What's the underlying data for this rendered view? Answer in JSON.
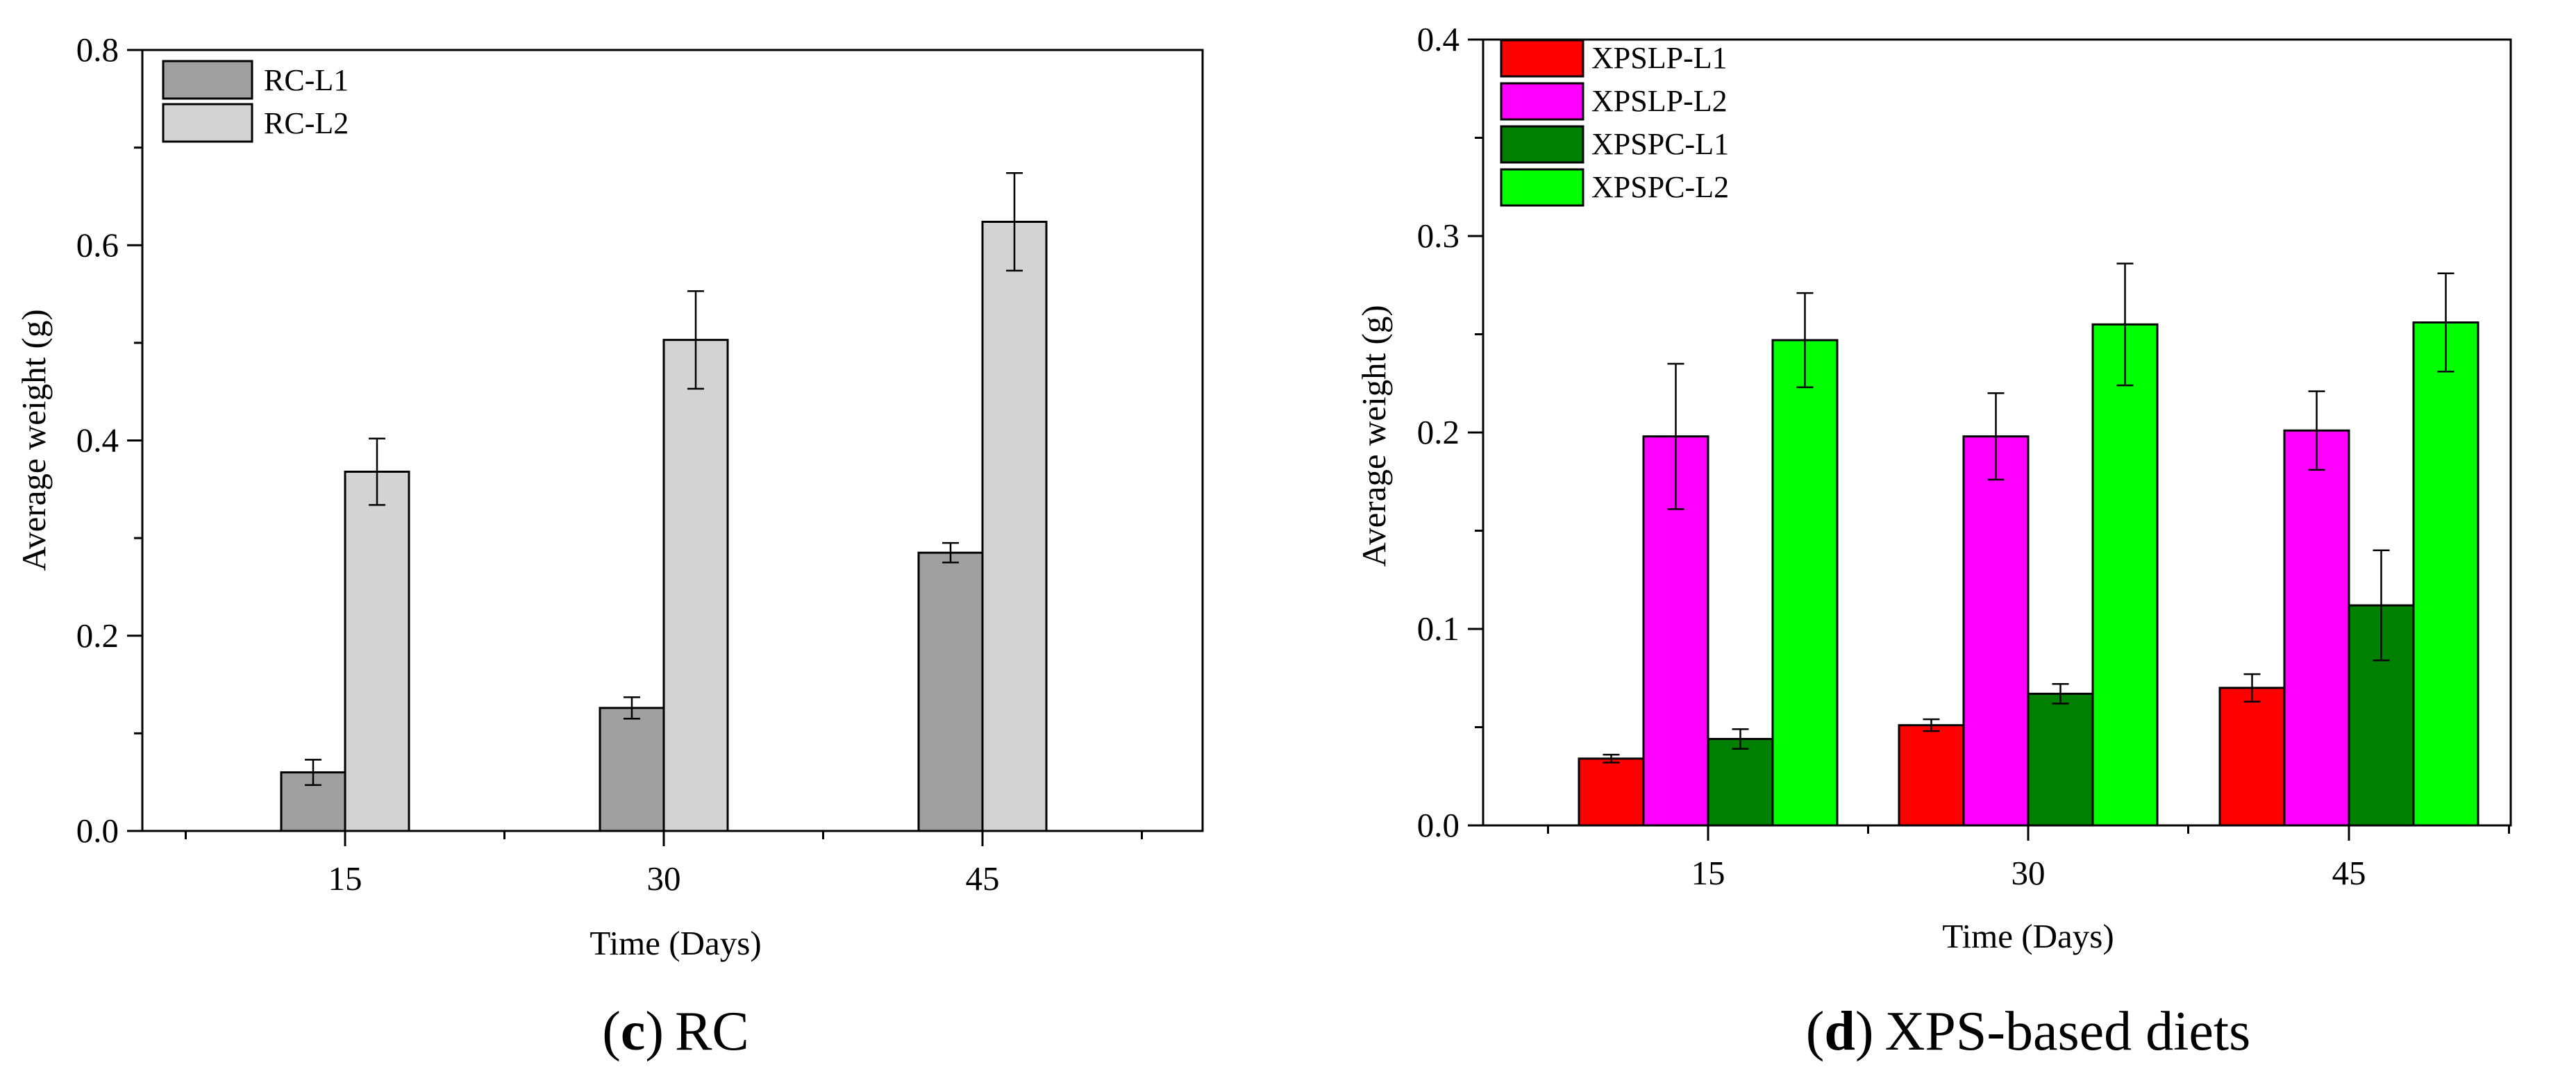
{
  "chart_data": [
    {
      "type": "bar",
      "panel": "c",
      "caption": {
        "letter": "c",
        "text": "RC",
        "open": "(",
        "close": ")"
      },
      "title": "",
      "xlabel": "Time (Days)",
      "ylabel": "Average weight (g)",
      "ylim": [
        0,
        0.8
      ],
      "yticks": [
        "0.0",
        "0.2",
        "0.4",
        "0.6",
        "0.8"
      ],
      "ytick_values": [
        0,
        0.2,
        0.4,
        0.6,
        0.8
      ],
      "categories": [
        "15",
        "30",
        "45"
      ],
      "series": [
        {
          "name": "RC-L1",
          "color": "#a0a0a0",
          "values": [
            0.06,
            0.126,
            0.285
          ],
          "errors": [
            0.013,
            0.011,
            0.01
          ]
        },
        {
          "name": "RC-L2",
          "color": "#d3d3d3",
          "values": [
            0.368,
            0.503,
            0.624
          ],
          "errors": [
            0.034,
            0.05,
            0.05
          ]
        }
      ],
      "legend": "top-left",
      "grid": false
    },
    {
      "type": "bar",
      "panel": "d",
      "caption": {
        "letter": "d",
        "text": "XPS-based diets",
        "open": "(",
        "close": ")"
      },
      "title": "",
      "xlabel": "Time (Days)",
      "ylabel": "Average weight (g)",
      "ylim": [
        0,
        0.4
      ],
      "yticks": [
        "0.0",
        "0.1",
        "0.2",
        "0.3",
        "0.4"
      ],
      "ytick_values": [
        0,
        0.1,
        0.2,
        0.3,
        0.4
      ],
      "categories": [
        "15",
        "30",
        "45"
      ],
      "series": [
        {
          "name": "XPSLP-L1",
          "color": "#ff0000",
          "values": [
            0.034,
            0.051,
            0.07
          ],
          "errors": [
            0.002,
            0.003,
            0.007
          ]
        },
        {
          "name": "XPSLP-L2",
          "color": "#ff00ff",
          "values": [
            0.198,
            0.198,
            0.201
          ],
          "errors": [
            0.037,
            0.022,
            0.02
          ]
        },
        {
          "name": "XPSPC-L1",
          "color": "#008000",
          "values": [
            0.044,
            0.067,
            0.112
          ],
          "errors": [
            0.005,
            0.005,
            0.028
          ]
        },
        {
          "name": "XPSPC-L2",
          "color": "#00ff00",
          "values": [
            0.247,
            0.255,
            0.256
          ],
          "errors": [
            0.024,
            0.031,
            0.025
          ]
        }
      ],
      "legend": "top-left",
      "grid": false
    }
  ]
}
